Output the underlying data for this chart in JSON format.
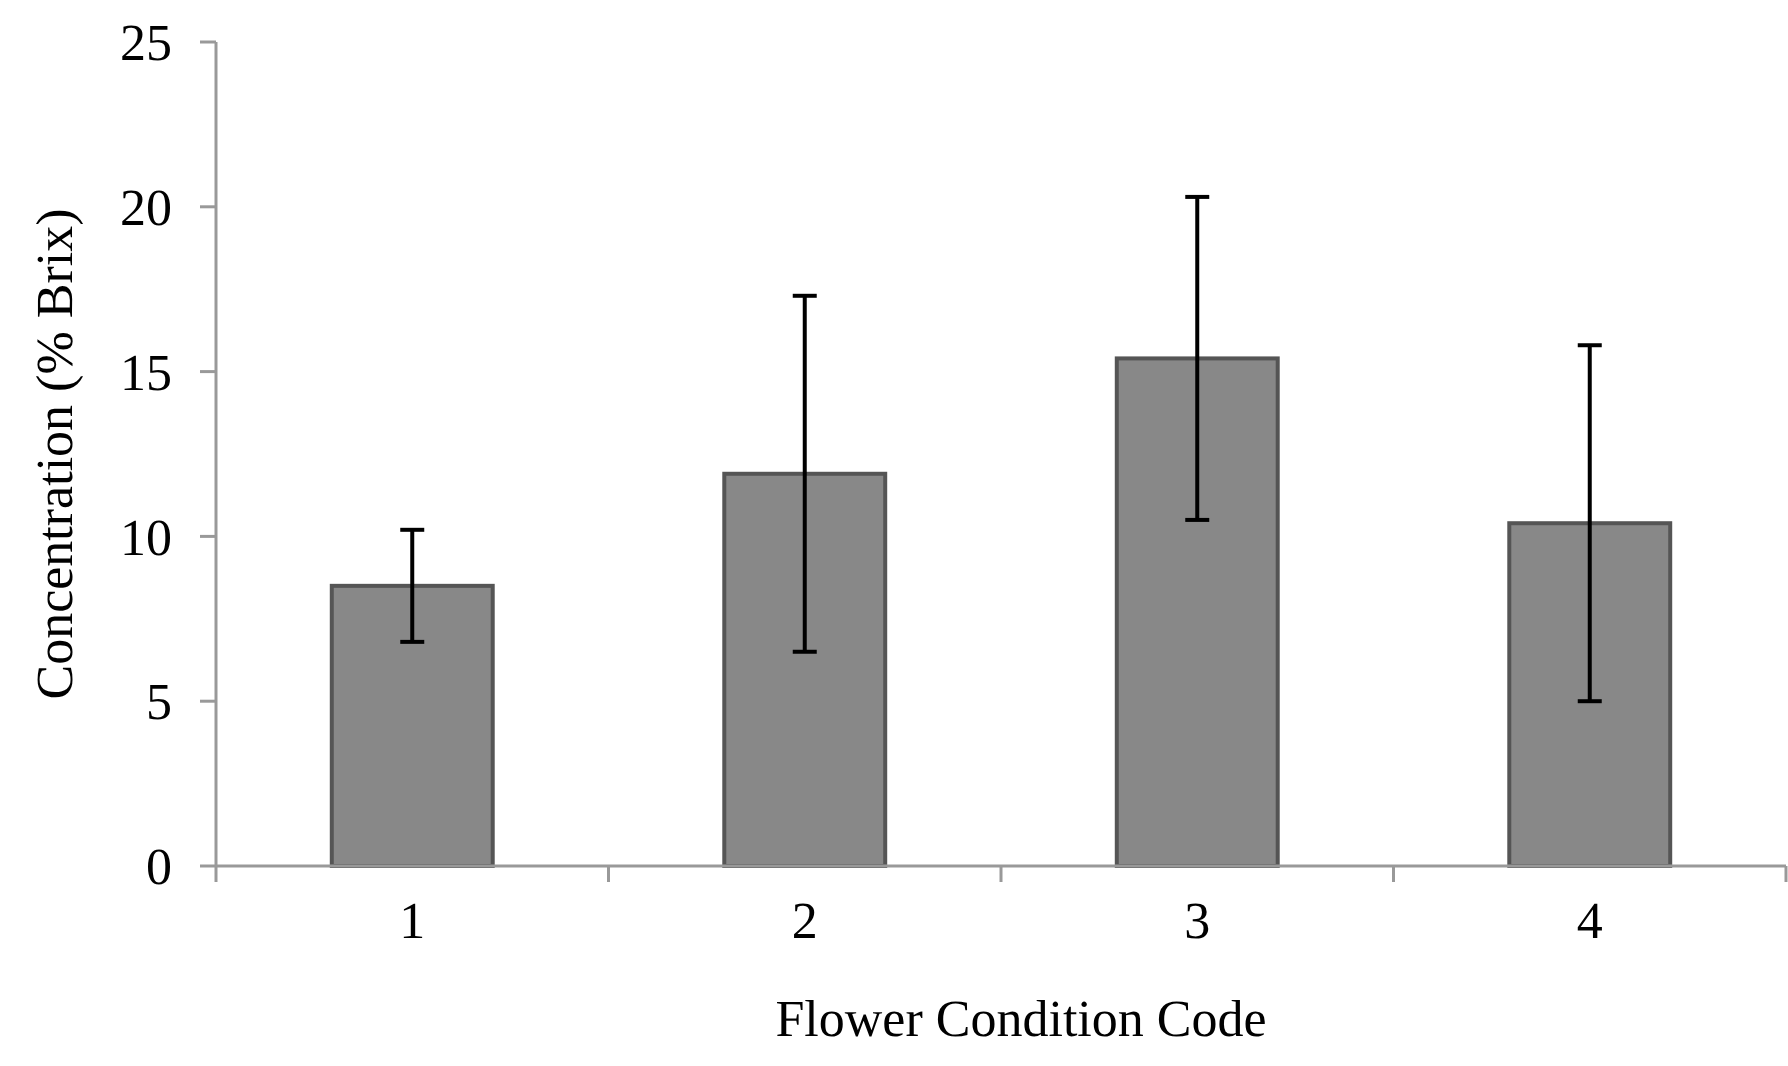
{
  "chart_data": {
    "type": "bar",
    "xlabel": "Flower Condition Code",
    "ylabel": "Concentration (% Brix)",
    "categories": [
      "1",
      "2",
      "3",
      "4"
    ],
    "values": [
      8.5,
      11.9,
      15.4,
      10.4
    ],
    "errors": [
      1.7,
      5.4,
      4.9,
      5.4
    ],
    "color": "#888888",
    "ylim": [
      0,
      25
    ],
    "yticks": [
      0,
      5,
      10,
      15,
      20,
      25
    ],
    "grid": false
  }
}
